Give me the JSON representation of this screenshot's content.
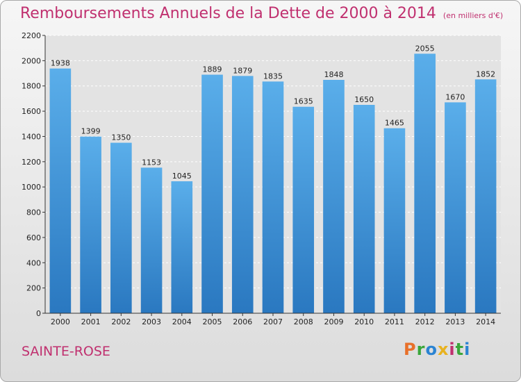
{
  "chart_data": {
    "type": "bar",
    "title": "Remboursements Annuels de la Dette de 2000 à 2014",
    "subtitle": "(en milliers d'€)",
    "categories": [
      "2000",
      "2001",
      "2002",
      "2003",
      "2004",
      "2005",
      "2006",
      "2007",
      "2008",
      "2009",
      "2010",
      "2011",
      "2012",
      "2013",
      "2014"
    ],
    "values": [
      1938,
      1399,
      1350,
      1153,
      1045,
      1889,
      1879,
      1835,
      1635,
      1848,
      1650,
      1465,
      2055,
      1670,
      1852
    ],
    "ylim": [
      0,
      2200
    ],
    "yticks": [
      0,
      200,
      400,
      600,
      800,
      1000,
      1200,
      1400,
      1600,
      1800,
      2000,
      2200
    ],
    "grid": true,
    "bar_color": "#3d8fd6",
    "grid_color": "#ffffff"
  },
  "footer": {
    "city": "SAINTE-ROSE",
    "logo": "Proxiti"
  },
  "colors": {
    "title": "#c0306f",
    "logo": [
      "#e8702a",
      "#3aa63a",
      "#2b84d2",
      "#e8b21f",
      "#c0306f",
      "#3aa63a",
      "#2b84d2"
    ]
  }
}
